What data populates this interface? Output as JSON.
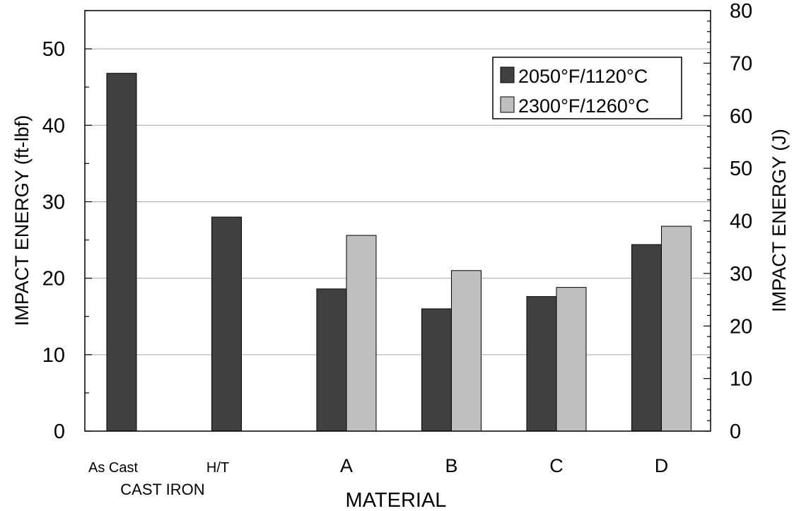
{
  "chart_data": {
    "type": "bar",
    "categories": [
      "As Cast",
      "H/T",
      "A",
      "B",
      "C",
      "D"
    ],
    "group_label": "CAST IRON",
    "series": [
      {
        "name": "2050°F/1120°C",
        "values": [
          46.8,
          28.0,
          18.6,
          16.0,
          17.6,
          24.4
        ],
        "color": "#404040"
      },
      {
        "name": "2300°F/1260°C",
        "values": [
          null,
          null,
          25.6,
          21.0,
          18.8,
          26.8
        ],
        "color": "#bfbfbf"
      }
    ],
    "xlabel": "MATERIAL",
    "ylabel": "IMPACT ENERGY (ft-lbf)",
    "y2label": "IMPACT ENERGY (J)",
    "ylim": [
      0,
      55
    ],
    "y2lim": [
      0,
      80
    ],
    "yticks": [
      0,
      10,
      20,
      30,
      40,
      50
    ],
    "y2ticks": [
      0,
      10,
      20,
      30,
      40,
      50,
      60,
      70,
      80
    ],
    "grid": true,
    "legend_position": "top-right"
  }
}
